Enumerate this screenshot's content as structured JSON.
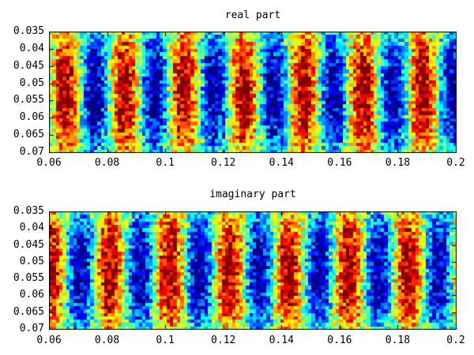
{
  "figure": {
    "background_color": "#ffffff",
    "text_color": "#000000",
    "frame_color": "#000000"
  },
  "chart_data": [
    {
      "type": "heatmap",
      "title": "real part",
      "xlim": [
        0.06,
        0.2
      ],
      "ylim": [
        0.035,
        0.07
      ],
      "y_axis_reversed": true,
      "x_tick_labels": [
        "0.06",
        "0.08",
        "0.1",
        "0.12",
        "0.14",
        "0.16",
        "0.18",
        "0.2"
      ],
      "y_tick_labels": [
        "0.035",
        "0.04",
        "0.045",
        "0.05",
        "0.055",
        "0.06",
        "0.065",
        "0.07"
      ],
      "colormap": "jet",
      "grid": false,
      "legend": "none",
      "pattern": {
        "description": "noisy vertical cosine bands, amplitude fades toward top/bottom edges",
        "wave": "cos",
        "period_x": 0.0205,
        "peak_x": 0.0655,
        "value_range": [
          -1,
          1
        ],
        "noise": 0.38,
        "cols": 118,
        "rows": 35,
        "edge_fade_min": 0.28
      }
    },
    {
      "type": "heatmap",
      "title": "imaginary part",
      "xlim": [
        0.06,
        0.2
      ],
      "ylim": [
        0.035,
        0.07
      ],
      "y_axis_reversed": true,
      "x_tick_labels": [
        "0.06",
        "0.08",
        "0.1",
        "0.12",
        "0.14",
        "0.16",
        "0.18",
        "0.2"
      ],
      "y_tick_labels": [
        "0.035",
        "0.04",
        "0.045",
        "0.05",
        "0.055",
        "0.06",
        "0.065",
        "0.07"
      ],
      "colormap": "jet",
      "grid": false,
      "legend": "none",
      "pattern": {
        "description": "noisy vertical cosine bands, quarter-period phase shift vs real part, amplitude fades toward top/bottom edges",
        "wave": "cos",
        "period_x": 0.0205,
        "peak_x": 0.0605,
        "value_range": [
          -1,
          1
        ],
        "noise": 0.38,
        "cols": 118,
        "rows": 35,
        "edge_fade_min": 0.28
      }
    }
  ]
}
